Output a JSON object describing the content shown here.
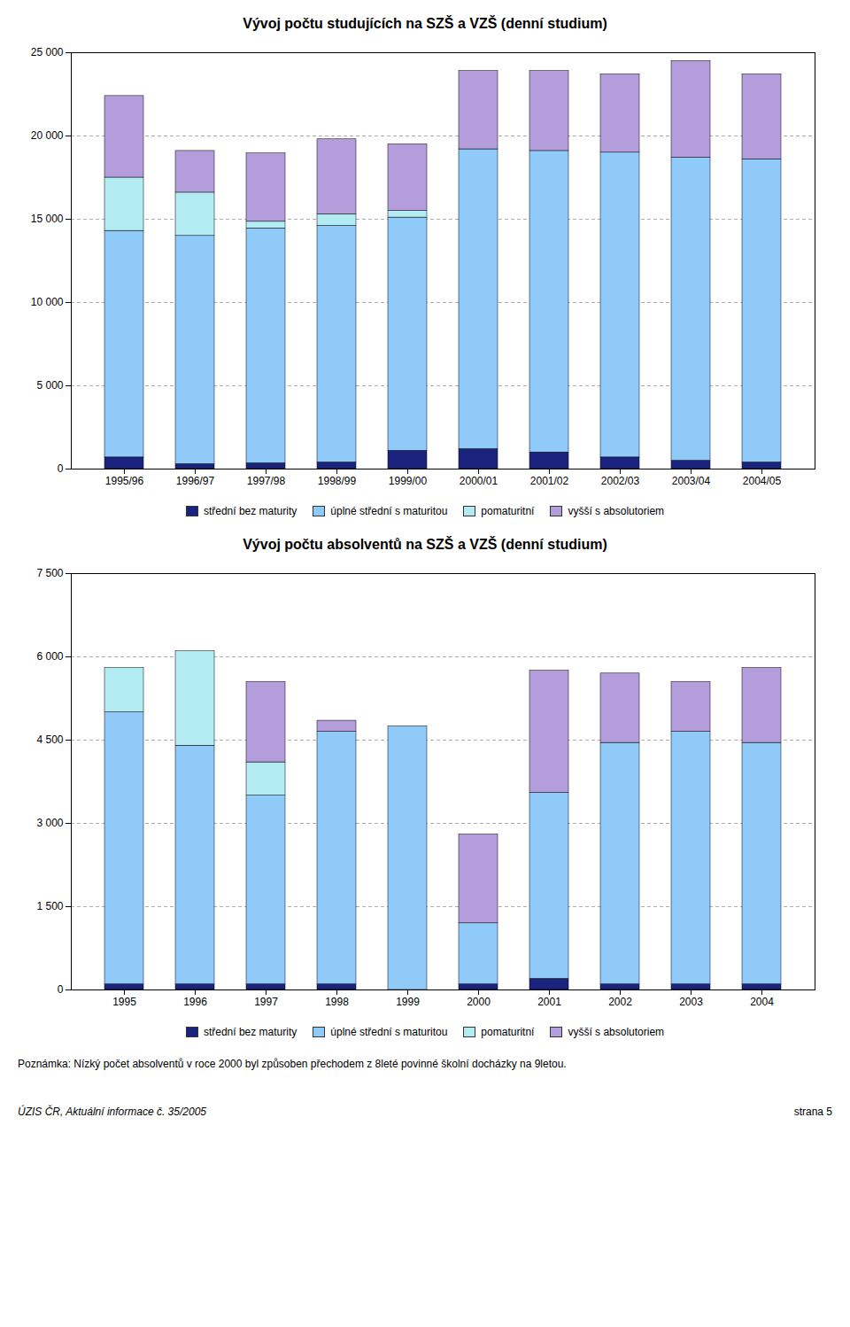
{
  "chart_data": [
    {
      "type": "bar",
      "stacked": true,
      "grid": true,
      "legend": "bottom",
      "title": "Vývoj počtu studujících na SZŠ a VZŠ (denní studium)",
      "categories": [
        "1995/96",
        "1996/97",
        "1997/98",
        "1998/99",
        "1999/00",
        "2000/01",
        "2001/02",
        "2002/03",
        "2003/04",
        "2004/05"
      ],
      "series": [
        {
          "name": "střední bez maturity",
          "color": "#1a237e",
          "values": [
            700,
            300,
            350,
            400,
            1100,
            1200,
            1000,
            700,
            500,
            400
          ]
        },
        {
          "name": "úplné střední s maturitou",
          "color": "#90caf9",
          "values": [
            13600,
            13700,
            14100,
            14200,
            14000,
            18000,
            18100,
            18300,
            18200,
            18200
          ]
        },
        {
          "name": "pomaturitní",
          "color": "#b2ebf2",
          "values": [
            3200,
            2600,
            400,
            700,
            400,
            0,
            0,
            0,
            0,
            0
          ]
        },
        {
          "name": "vyšší s absolutoriem",
          "color": "#b39ddb",
          "values": [
            4900,
            2500,
            4100,
            4500,
            4000,
            4700,
            4800,
            4700,
            5800,
            5100
          ]
        }
      ],
      "ylim": [
        0,
        25000
      ],
      "yticks": [
        0,
        {
          "value": 5000,
          "label": "5 000"
        },
        {
          "value": 10000,
          "label": "10 000"
        },
        {
          "value": 15000,
          "label": "15 000"
        },
        {
          "value": 20000,
          "label": "20 000"
        },
        {
          "value": 25000,
          "label": "25 000"
        }
      ]
    },
    {
      "type": "bar",
      "stacked": true,
      "grid": true,
      "legend": "bottom",
      "title": "Vývoj počtu absolventů na SZŠ a VZŠ (denní studium)",
      "categories": [
        "1995",
        "1996",
        "1997",
        "1998",
        "1999",
        "2000",
        "2001",
        "2002",
        "2003",
        "2004"
      ],
      "series": [
        {
          "name": "střední bez maturity",
          "color": "#1a237e",
          "values": [
            100,
            100,
            100,
            100,
            0,
            100,
            200,
            100,
            100,
            100
          ]
        },
        {
          "name": "úplné střední s maturitou",
          "color": "#90caf9",
          "values": [
            4900,
            4300,
            3400,
            4550,
            4750,
            1100,
            3350,
            4350,
            4550,
            4350
          ]
        },
        {
          "name": "pomaturitní",
          "color": "#b2ebf2",
          "values": [
            800,
            1700,
            600,
            0,
            0,
            0,
            0,
            0,
            0,
            0
          ]
        },
        {
          "name": "vyšší s absolutoriem",
          "color": "#b39ddb",
          "values": [
            0,
            0,
            1450,
            200,
            0,
            1600,
            2200,
            1250,
            900,
            1350
          ]
        }
      ],
      "ylim": [
        0,
        7500
      ],
      "yticks": [
        0,
        {
          "value": 1500,
          "label": "1 500"
        },
        {
          "value": 3000,
          "label": "3 000"
        },
        {
          "value": 4500,
          "label": "4 500"
        },
        {
          "value": 6000,
          "label": "6 000"
        },
        {
          "value": 7500,
          "label": "7 500"
        }
      ]
    }
  ],
  "annotations": [
    "Poznámka: Nízký počet absolventů v roce 2000 byl způsoben přechodem z 8leté povinné školní docházky na 9letou.",
    "ÚZIS ČR, Aktuální informace č. 35/2005",
    "strana 5"
  ]
}
